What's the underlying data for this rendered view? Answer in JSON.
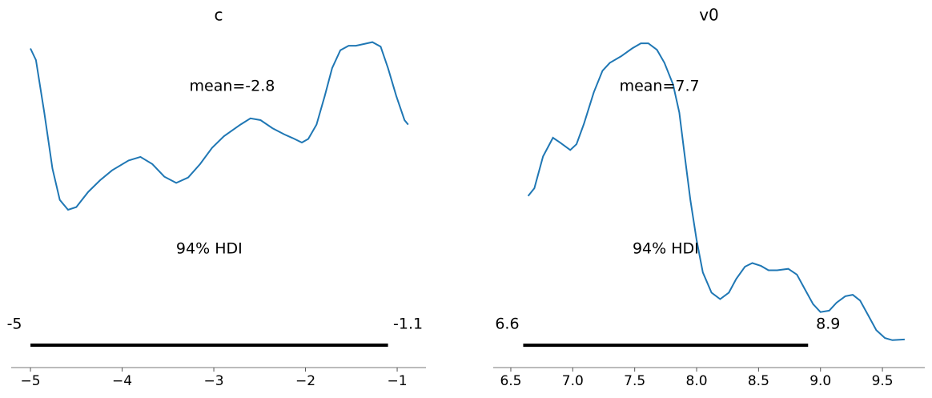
{
  "chart_data": [
    {
      "type": "line",
      "title": "c",
      "color": "#1f77b4",
      "x": [
        -5.0,
        -4.94,
        -4.85,
        -4.76,
        -4.68,
        -4.59,
        -4.5,
        -4.37,
        -4.24,
        -4.11,
        -3.93,
        -3.8,
        -3.67,
        -3.54,
        -3.41,
        -3.28,
        -3.15,
        -3.02,
        -2.89,
        -2.71,
        -2.6,
        -2.49,
        -2.36,
        -2.23,
        -2.14,
        -2.04,
        -1.97,
        -1.88,
        -1.79,
        -1.71,
        -1.62,
        -1.53,
        -1.45,
        -1.36,
        -1.27,
        -1.18,
        -1.1,
        -1.01,
        -0.92,
        -0.88
      ],
      "values": [
        0.331,
        0.318,
        0.26,
        0.197,
        0.162,
        0.151,
        0.154,
        0.171,
        0.184,
        0.195,
        0.206,
        0.21,
        0.202,
        0.188,
        0.181,
        0.187,
        0.202,
        0.22,
        0.233,
        0.246,
        0.253,
        0.251,
        0.242,
        0.235,
        0.231,
        0.226,
        0.23,
        0.246,
        0.278,
        0.309,
        0.329,
        0.334,
        0.334,
        0.336,
        0.338,
        0.333,
        0.309,
        0.278,
        0.251,
        0.246
      ],
      "xlim": [
        -5.21,
        -0.686
      ],
      "xticks": [
        {
          "value": -5,
          "label": "−5"
        },
        {
          "value": -4,
          "label": "−4"
        },
        {
          "value": -3,
          "label": "−3"
        },
        {
          "value": -2,
          "label": "−2"
        },
        {
          "value": -1,
          "label": "−1"
        }
      ],
      "ylim": [
        -0.025,
        0.36
      ],
      "mean": -2.8,
      "mean_label": "mean=-2.8",
      "hdi_label": "94% HDI",
      "hdi": [
        -5,
        -1.1
      ]
    },
    {
      "type": "line",
      "title": "v0",
      "color": "#1f77b4",
      "x": [
        6.64,
        6.69,
        6.76,
        6.84,
        6.9,
        6.98,
        7.03,
        7.09,
        7.17,
        7.24,
        7.3,
        7.39,
        7.48,
        7.55,
        7.61,
        7.68,
        7.74,
        7.81,
        7.86,
        7.9,
        7.95,
        8.0,
        8.05,
        8.12,
        8.19,
        8.26,
        8.32,
        8.39,
        8.45,
        8.52,
        8.58,
        8.65,
        8.74,
        8.81,
        8.87,
        8.94,
        9.0,
        9.07,
        9.13,
        9.2,
        9.26,
        9.32,
        9.39,
        9.45,
        9.52,
        9.58,
        9.68
      ],
      "values": [
        0.207,
        0.218,
        0.262,
        0.288,
        0.281,
        0.271,
        0.279,
        0.307,
        0.351,
        0.381,
        0.392,
        0.401,
        0.412,
        0.419,
        0.419,
        0.41,
        0.392,
        0.362,
        0.323,
        0.268,
        0.201,
        0.146,
        0.101,
        0.073,
        0.064,
        0.073,
        0.092,
        0.109,
        0.114,
        0.11,
        0.104,
        0.104,
        0.106,
        0.098,
        0.079,
        0.057,
        0.046,
        0.048,
        0.059,
        0.068,
        0.07,
        0.062,
        0.04,
        0.021,
        0.01,
        0.007,
        0.008
      ],
      "xlim": [
        6.358,
        9.842
      ],
      "xticks": [
        6.5,
        {
          "value": 7,
          "label": "7.0"
        },
        7.5,
        {
          "value": 8,
          "label": "8.0"
        },
        8.5,
        {
          "value": 9,
          "label": "9.0"
        },
        9.5
      ],
      "ylim": [
        -0.031,
        0.448
      ],
      "mean": 7.7,
      "mean_label": "mean=7.7",
      "hdi_label": "94% HDI",
      "hdi": [
        6.6,
        8.9
      ]
    }
  ]
}
